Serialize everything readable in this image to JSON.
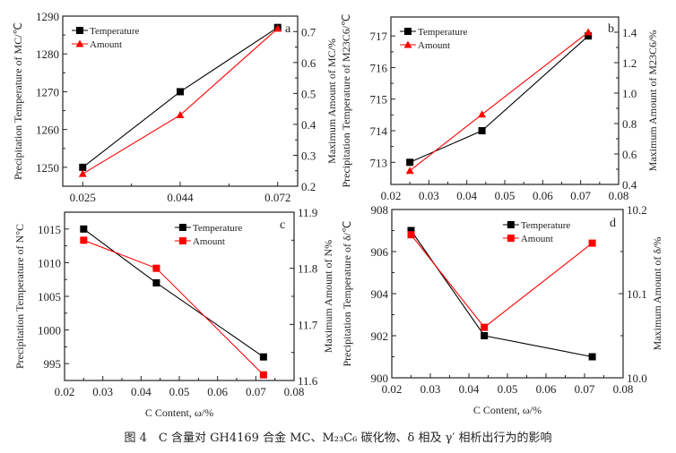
{
  "caption": "图 4　C 含量对 GH4169 合金 MC、M₂₃C₆ 碳化物、δ 相及 γ′ 相析出行为的影响",
  "colors": {
    "temperature": "#000000",
    "amount": "#ff0000",
    "axis": "#222222"
  },
  "chart_data": [
    {
      "type": "line",
      "panel": "a",
      "xlabel": "",
      "ylabel": "Precipitation Temperature of MC/℃",
      "y2label": "Maximum Amount of MC/%",
      "x_categorical": true,
      "xticks": [
        "0.025",
        "0.044",
        "0.072"
      ],
      "x": [
        0.025,
        0.044,
        0.072
      ],
      "ylim": [
        1245,
        1290
      ],
      "yticks": [
        "1250",
        "1260",
        "1270",
        "1280",
        "1290"
      ],
      "y2lim": [
        0.2,
        0.75
      ],
      "y2ticks": [
        "0.2",
        "0.3",
        "0.4",
        "0.5",
        "0.6",
        "0.7"
      ],
      "legend": "top-left",
      "series": [
        {
          "name": "Temperature",
          "axis": "left",
          "marker": "square",
          "values": [
            1250,
            1270,
            1287
          ]
        },
        {
          "name": "Amount",
          "axis": "right",
          "marker": "triangle",
          "values": [
            0.24,
            0.43,
            0.71
          ]
        }
      ]
    },
    {
      "type": "line",
      "panel": "b",
      "xlabel": "",
      "ylabel": "Precipitation Temperature of M23C6/℃",
      "y2label": "Maximum Amount of M23C6/%",
      "x_categorical": false,
      "xlim": [
        0.02,
        0.08
      ],
      "xticks": [
        "0.02",
        "0.03",
        "0.04",
        "0.05",
        "0.06",
        "0.07",
        "0.08"
      ],
      "x": [
        0.025,
        0.044,
        0.072
      ],
      "ylim": [
        712.3,
        717.6
      ],
      "yticks": [
        "713",
        "714",
        "715",
        "716",
        "717"
      ],
      "y2lim": [
        0.4,
        1.5
      ],
      "y2ticks": [
        "0.4",
        "0.6",
        "0.8",
        "1.0",
        "1.2",
        "1.4"
      ],
      "legend": "top-left",
      "series": [
        {
          "name": "Temperature",
          "axis": "left",
          "marker": "square",
          "values": [
            713,
            714,
            717
          ]
        },
        {
          "name": "Amount",
          "axis": "right",
          "marker": "triangle",
          "values": [
            0.49,
            0.86,
            1.4
          ]
        }
      ]
    },
    {
      "type": "line",
      "panel": "c",
      "xlabel": "C Content, ω/%",
      "ylabel": "Precipitation Temperature of N°C",
      "y2label": "Maximum Amount of N%",
      "x_categorical": false,
      "xlim": [
        0.02,
        0.08
      ],
      "xticks": [
        "0.02",
        "0.03",
        "0.04",
        "0.05",
        "0.06",
        "0.07",
        "0.08"
      ],
      "x": [
        0.025,
        0.044,
        0.072
      ],
      "ylim": [
        992.5,
        1017.5
      ],
      "yticks": [
        "995",
        "1000",
        "1005",
        "1010",
        "1015"
      ],
      "y2lim": [
        11.6,
        11.9
      ],
      "y2ticks": [
        "11.6",
        "11.7",
        "11.8",
        "11.9"
      ],
      "legend": "top-center",
      "series": [
        {
          "name": "Temperature",
          "axis": "left",
          "marker": "square",
          "values": [
            1015,
            1007,
            996
          ]
        },
        {
          "name": "Amount",
          "axis": "right",
          "marker": "square",
          "values": [
            11.85,
            11.8,
            11.61
          ]
        }
      ]
    },
    {
      "type": "line",
      "panel": "d",
      "xlabel": "C Content, ω/%",
      "ylabel": "Precipitation Temperature of δ/℃",
      "y2label": "Maximum Amount of δ/%",
      "x_categorical": false,
      "xlim": [
        0.02,
        0.08
      ],
      "xticks": [
        "0.02",
        "0.03",
        "0.04",
        "0.05",
        "0.06",
        "0.07",
        "0.08"
      ],
      "x": [
        0.025,
        0.044,
        0.072
      ],
      "ylim": [
        900,
        908
      ],
      "yticks": [
        "900",
        "902",
        "904",
        "906",
        "908"
      ],
      "y2lim": [
        10.0,
        10.2
      ],
      "y2ticks": [
        "10.0",
        "10.1",
        "10.2"
      ],
      "legend": "top-center",
      "series": [
        {
          "name": "Temperature",
          "axis": "left",
          "marker": "square",
          "values": [
            907,
            902,
            901
          ]
        },
        {
          "name": "Amount",
          "axis": "right",
          "marker": "square",
          "values": [
            10.17,
            10.06,
            10.16
          ]
        }
      ]
    }
  ]
}
